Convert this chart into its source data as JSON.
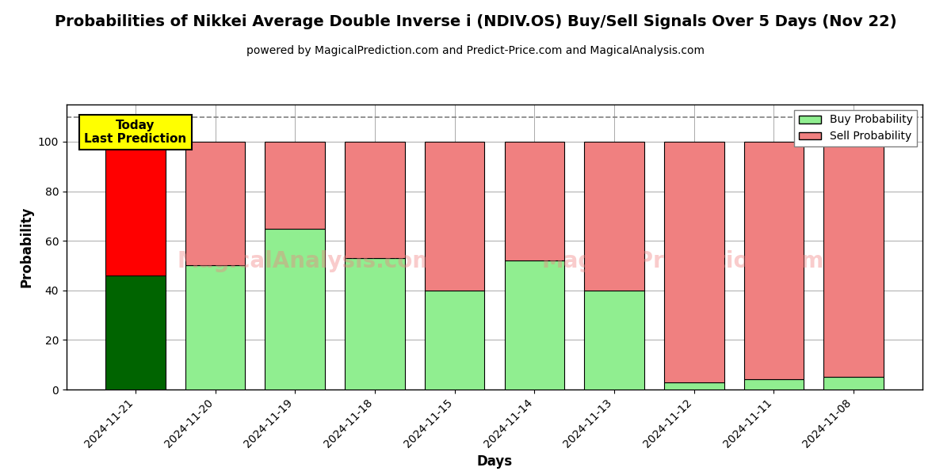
{
  "title": "Probabilities of Nikkei Average Double Inverse i (NDIV.OS) Buy/Sell Signals Over 5 Days (Nov 22)",
  "subtitle": "powered by MagicalPrediction.com and Predict-Price.com and MagicalAnalysis.com",
  "xlabel": "Days",
  "ylabel": "Probability",
  "categories": [
    "2024-11-21",
    "2024-11-20",
    "2024-11-19",
    "2024-11-18",
    "2024-11-15",
    "2024-11-14",
    "2024-11-13",
    "2024-11-12",
    "2024-11-11",
    "2024-11-08"
  ],
  "buy_values": [
    46,
    50,
    65,
    53,
    40,
    52,
    40,
    3,
    4,
    5
  ],
  "sell_values": [
    54,
    50,
    35,
    47,
    60,
    48,
    60,
    97,
    96,
    95
  ],
  "today_bar_index": 0,
  "buy_color_today": "#006400",
  "sell_color_today": "#FF0000",
  "buy_color_others": "#90EE90",
  "sell_color_others": "#F08080",
  "bar_edge_color": "#000000",
  "dashed_line_y": 110,
  "ylim": [
    0,
    115
  ],
  "yticks": [
    0,
    20,
    40,
    60,
    80,
    100
  ],
  "annotation_text": "Today\nLast Prediction",
  "annotation_bg": "#FFFF00",
  "legend_buy_color": "#90EE90",
  "legend_sell_color": "#F08080",
  "watermark_texts": [
    "MagicalAnalysis.com",
    "MagicalPrediction.com"
  ],
  "watermark_color": "#F08080",
  "watermark_alpha": 0.4,
  "background_color": "#FFFFFF",
  "grid_color": "#AAAAAA",
  "title_fontsize": 14,
  "subtitle_fontsize": 10,
  "axis_label_fontsize": 12,
  "tick_fontsize": 10
}
